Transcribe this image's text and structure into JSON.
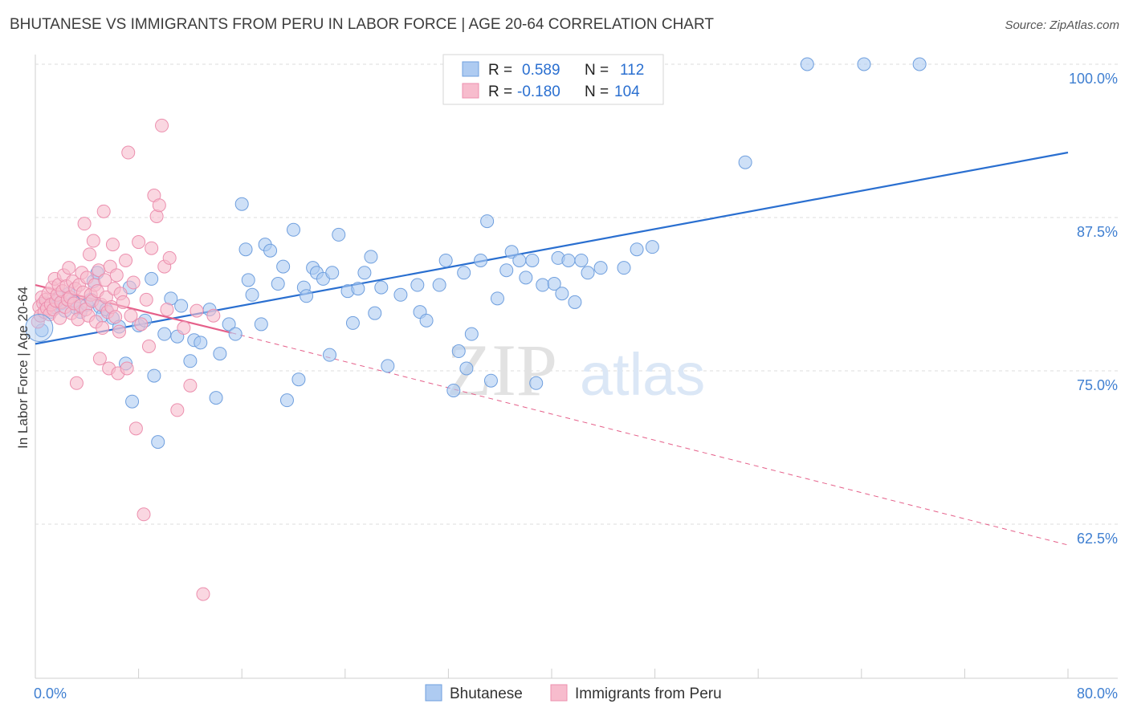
{
  "title": "BHUTANESE VS IMMIGRANTS FROM PERU IN LABOR FORCE | AGE 20-64 CORRELATION CHART",
  "source": "Source: ZipAtlas.com",
  "watermark": {
    "zip": "ZIP",
    "atlas": "atlas"
  },
  "colors": {
    "blue_fill": "#aecbf1",
    "blue_stroke": "#6f9fde",
    "blue_line": "#2a6fd0",
    "pink_fill": "#f7bccd",
    "pink_stroke": "#ec8fae",
    "pink_line": "#e5608a",
    "tick_label": "#3f7fd1"
  },
  "legend_box": {
    "rows": [
      {
        "r_label": "R =",
        "r_value": "0.589",
        "n_label": "N =",
        "n_value": "112",
        "color": "blue"
      },
      {
        "r_label": "R =",
        "r_value": "-0.180",
        "n_label": "N =",
        "n_value": "104",
        "color": "pink"
      }
    ]
  },
  "chart_data": {
    "type": "scatter",
    "title": "BHUTANESE VS IMMIGRANTS FROM PERU IN LABOR FORCE | AGE 20-64 CORRELATION CHART",
    "xlabel": "",
    "ylabel": "In Labor Force | Age 20-64",
    "xlim": [
      0,
      80
    ],
    "ylim": [
      52.5,
      101.5
    ],
    "x_tick_labels": [
      "0.0%",
      "80.0%"
    ],
    "y_ticks": [
      100.0,
      87.5,
      75.0,
      62.5
    ],
    "y_tick_labels": [
      "100.0%",
      "87.5%",
      "75.0%",
      "62.5%"
    ],
    "grid": "horizontal dashed",
    "legend_position": "bottom-center",
    "series": [
      {
        "name": "Bhutanese",
        "color": "blue",
        "R": 0.589,
        "N": 112,
        "trend": {
          "x": [
            0,
            80
          ],
          "y": [
            77.2,
            92.8
          ],
          "style": "solid"
        },
        "points": [
          [
            0.5,
            78.3
          ],
          [
            0.8,
            80.5
          ],
          [
            1.2,
            79.8
          ],
          [
            1.5,
            80.2
          ],
          [
            1.8,
            81.0
          ],
          [
            2.0,
            80.5
          ],
          [
            2.3,
            79.9
          ],
          [
            2.6,
            81.3
          ],
          [
            3.0,
            80.6
          ],
          [
            3.2,
            80.1
          ],
          [
            3.5,
            79.8
          ],
          [
            4.0,
            80.4
          ],
          [
            4.3,
            80.8
          ],
          [
            4.5,
            82.3
          ],
          [
            4.8,
            83.0
          ],
          [
            5.0,
            80.2
          ],
          [
            5.2,
            79.5
          ],
          [
            5.5,
            80.0
          ],
          [
            6.0,
            79.3
          ],
          [
            6.5,
            78.6
          ],
          [
            7.0,
            75.6
          ],
          [
            7.3,
            81.8
          ],
          [
            7.5,
            72.5
          ],
          [
            8.0,
            78.7
          ],
          [
            8.5,
            79.1
          ],
          [
            9.0,
            82.5
          ],
          [
            9.2,
            74.6
          ],
          [
            9.5,
            69.2
          ],
          [
            10.0,
            78.0
          ],
          [
            10.5,
            80.9
          ],
          [
            11.0,
            77.8
          ],
          [
            11.3,
            80.3
          ],
          [
            12.0,
            75.8
          ],
          [
            12.3,
            77.5
          ],
          [
            12.8,
            77.3
          ],
          [
            13.5,
            80.0
          ],
          [
            14.0,
            72.8
          ],
          [
            14.3,
            76.4
          ],
          [
            15.0,
            78.8
          ],
          [
            15.5,
            78.0
          ],
          [
            16.0,
            88.6
          ],
          [
            16.3,
            84.9
          ],
          [
            16.5,
            82.4
          ],
          [
            16.8,
            81.2
          ],
          [
            17.5,
            78.8
          ],
          [
            17.8,
            85.3
          ],
          [
            18.2,
            84.8
          ],
          [
            18.8,
            82.1
          ],
          [
            19.2,
            83.5
          ],
          [
            19.5,
            72.6
          ],
          [
            20.0,
            86.5
          ],
          [
            20.4,
            74.3
          ],
          [
            20.8,
            81.8
          ],
          [
            21.0,
            81.1
          ],
          [
            21.5,
            83.4
          ],
          [
            21.8,
            83.0
          ],
          [
            22.3,
            82.5
          ],
          [
            22.8,
            76.3
          ],
          [
            23.0,
            83.0
          ],
          [
            23.5,
            86.1
          ],
          [
            24.2,
            81.5
          ],
          [
            24.6,
            78.9
          ],
          [
            25.0,
            81.7
          ],
          [
            25.5,
            83.0
          ],
          [
            26.0,
            84.3
          ],
          [
            26.3,
            79.7
          ],
          [
            26.8,
            81.8
          ],
          [
            27.3,
            75.4
          ],
          [
            28.3,
            81.2
          ],
          [
            29.8,
            79.8
          ],
          [
            29.6,
            82.0
          ],
          [
            30.3,
            79.1
          ],
          [
            31.3,
            82.0
          ],
          [
            31.8,
            84.0
          ],
          [
            32.4,
            73.4
          ],
          [
            32.8,
            76.6
          ],
          [
            33.2,
            83.0
          ],
          [
            33.4,
            75.2
          ],
          [
            33.8,
            78.0
          ],
          [
            34.5,
            84.0
          ],
          [
            35.0,
            87.2
          ],
          [
            35.8,
            80.9
          ],
          [
            35.3,
            74.2
          ],
          [
            36.5,
            83.2
          ],
          [
            36.9,
            84.7
          ],
          [
            37.5,
            84.0
          ],
          [
            38.0,
            82.6
          ],
          [
            38.5,
            84.0
          ],
          [
            38.8,
            74.0
          ],
          [
            39.3,
            82.0
          ],
          [
            40.2,
            82.1
          ],
          [
            40.5,
            84.2
          ],
          [
            40.8,
            81.3
          ],
          [
            41.3,
            84.0
          ],
          [
            41.8,
            80.6
          ],
          [
            42.3,
            84.0
          ],
          [
            42.8,
            83.0
          ],
          [
            43.8,
            83.4
          ],
          [
            45.6,
            83.4
          ],
          [
            46.6,
            84.9
          ],
          [
            47.8,
            85.1
          ],
          [
            55.0,
            92.0
          ],
          [
            59.8,
            100.0
          ],
          [
            64.2,
            100.0
          ],
          [
            68.5,
            100.0
          ]
        ]
      },
      {
        "name": "Immigrants from Peru",
        "color": "pink",
        "R": -0.18,
        "N": 104,
        "trend": {
          "x": [
            0,
            15.2
          ],
          "y": [
            82.0,
            78.1
          ],
          "style": "solid"
        },
        "trend_extension": {
          "x": [
            15.2,
            80
          ],
          "y": [
            78.1,
            60.8
          ],
          "style": "dashed"
        },
        "points": [
          [
            0.2,
            79.0
          ],
          [
            0.3,
            80.2
          ],
          [
            0.4,
            79.5
          ],
          [
            0.5,
            81.0
          ],
          [
            0.6,
            80.5
          ],
          [
            0.7,
            79.8
          ],
          [
            0.8,
            80.8
          ],
          [
            0.9,
            80.1
          ],
          [
            1.0,
            81.3
          ],
          [
            1.1,
            79.6
          ],
          [
            1.2,
            80.4
          ],
          [
            1.3,
            81.8
          ],
          [
            1.4,
            80.0
          ],
          [
            1.5,
            82.5
          ],
          [
            1.6,
            80.7
          ],
          [
            1.7,
            81.2
          ],
          [
            1.8,
            82.0
          ],
          [
            1.9,
            79.3
          ],
          [
            2.0,
            80.6
          ],
          [
            2.1,
            81.5
          ],
          [
            2.2,
            82.8
          ],
          [
            2.3,
            80.2
          ],
          [
            2.4,
            81.9
          ],
          [
            2.5,
            80.8
          ],
          [
            2.6,
            83.4
          ],
          [
            2.7,
            81.0
          ],
          [
            2.8,
            79.7
          ],
          [
            2.9,
            82.3
          ],
          [
            3.0,
            80.5
          ],
          [
            3.1,
            81.7
          ],
          [
            3.2,
            74.0
          ],
          [
            3.3,
            79.2
          ],
          [
            3.4,
            82.0
          ],
          [
            3.5,
            80.3
          ],
          [
            3.6,
            83.0
          ],
          [
            3.7,
            81.4
          ],
          [
            3.8,
            87.0
          ],
          [
            3.9,
            80.0
          ],
          [
            4.0,
            82.6
          ],
          [
            4.1,
            79.5
          ],
          [
            4.2,
            84.5
          ],
          [
            4.3,
            81.2
          ],
          [
            4.4,
            80.7
          ],
          [
            4.5,
            85.6
          ],
          [
            4.6,
            82.0
          ],
          [
            4.7,
            79.0
          ],
          [
            4.8,
            81.5
          ],
          [
            4.9,
            83.2
          ],
          [
            5.0,
            76.0
          ],
          [
            5.1,
            80.4
          ],
          [
            5.2,
            78.5
          ],
          [
            5.3,
            88.0
          ],
          [
            5.4,
            82.4
          ],
          [
            5.5,
            81.0
          ],
          [
            5.6,
            79.8
          ],
          [
            5.7,
            75.2
          ],
          [
            5.8,
            83.5
          ],
          [
            5.9,
            80.2
          ],
          [
            6.0,
            85.3
          ],
          [
            6.1,
            81.7
          ],
          [
            6.2,
            79.4
          ],
          [
            6.3,
            82.8
          ],
          [
            6.4,
            74.8
          ],
          [
            6.5,
            78.2
          ],
          [
            6.6,
            81.3
          ],
          [
            6.8,
            80.6
          ],
          [
            7.0,
            84.0
          ],
          [
            7.1,
            75.2
          ],
          [
            7.2,
            92.8
          ],
          [
            7.4,
            79.5
          ],
          [
            7.6,
            82.2
          ],
          [
            7.8,
            70.3
          ],
          [
            8.0,
            85.5
          ],
          [
            8.2,
            78.8
          ],
          [
            8.4,
            63.3
          ],
          [
            8.6,
            80.8
          ],
          [
            8.8,
            77.0
          ],
          [
            9.0,
            85.0
          ],
          [
            9.2,
            89.3
          ],
          [
            9.4,
            87.6
          ],
          [
            9.6,
            88.5
          ],
          [
            9.8,
            95.0
          ],
          [
            10.0,
            83.5
          ],
          [
            10.2,
            80.0
          ],
          [
            10.4,
            84.2
          ],
          [
            11.0,
            71.8
          ],
          [
            11.5,
            78.5
          ],
          [
            12.0,
            73.8
          ],
          [
            12.5,
            79.9
          ],
          [
            13.0,
            56.8
          ],
          [
            13.8,
            79.5
          ]
        ]
      }
    ]
  }
}
